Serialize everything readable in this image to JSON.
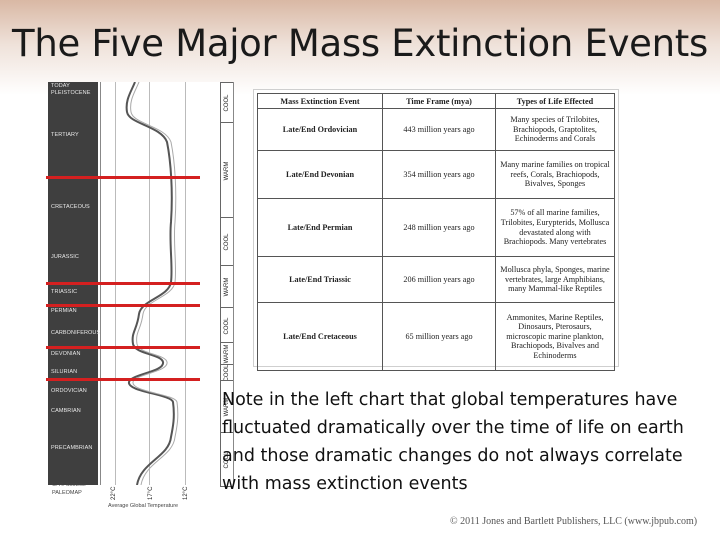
{
  "slide": {
    "title": "The Five Major Mass Extinction Events",
    "note": "Note in the left chart that global temperatures have fluctuated dramatically over the time of life on earth and those dramatic changes do not always correlate with mass extinction events",
    "copyright": "© 2011 Jones and Bartlett Publishers, LLC (www.jbpub.com)"
  },
  "geo_chart": {
    "periods": [
      "TODAY",
      "PLEISTOCENE",
      "TERTIARY",
      "CRETACEOUS",
      "JURASSIC",
      "TRIASSIC",
      "PERMIAN",
      "CARBONIFEROUS",
      "DEVONIAN",
      "SILURIAN",
      "ORDOVICIAN",
      "CAMBRIAN",
      "PRECAMBRIAN"
    ],
    "climate_bands": [
      "COOL",
      "WARM",
      "COOL",
      "WARM",
      "COOL",
      "WARM",
      "COOL",
      "WARM",
      "COOL"
    ],
    "temperature_ticks": [
      "22°C",
      "17°C",
      "12°C"
    ],
    "credit_line1": "C. R. Scotese",
    "credit_line2": "PALEOMAP",
    "axis_label": "Average Global Temperature"
  },
  "table": {
    "headers": [
      "Mass Extinction Event",
      "Time Frame (mya)",
      "Types of Life Effected"
    ],
    "rows": [
      {
        "event": "Late/End Ordovician",
        "time": "443 million years ago",
        "life": "Many species of Trilobites, Brachiopods, Graptolites, Echinoderms and Corals"
      },
      {
        "event": "Late/End Devonian",
        "time": "354 million years ago",
        "life": "Many marine families on tropical reefs, Corals, Brachiopods, Bivalves, Sponges"
      },
      {
        "event": "Late/End Permian",
        "time": "248 million years ago",
        "life": "57% of all marine families, Trilobites, Eurypterids, Mollusca devastated along with Brachiopods. Many vertebrates"
      },
      {
        "event": "Late/End Triassic",
        "time": "206 million years ago",
        "life": "Mollusca phyla, Sponges, marine vertebrates, large Amphibians, many Mammal-like Reptiles"
      },
      {
        "event": "Late/End Cretaceous",
        "time": "65 million years ago",
        "life": "Ammonites, Marine Reptiles, Dinosaurs, Pterosaurs, microscopic marine plankton, Brachiopods, Bivalves and Echinoderms"
      }
    ]
  }
}
